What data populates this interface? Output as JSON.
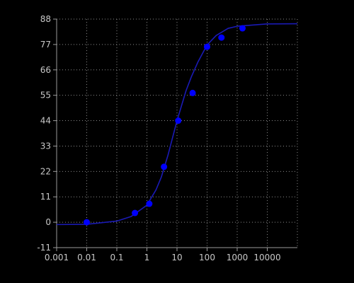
{
  "chart_data": {
    "type": "scatter",
    "title": "",
    "xlabel": "",
    "ylabel": "",
    "x_scale": "log",
    "xlim": [
      0.001,
      100000
    ],
    "ylim": [
      -11,
      88
    ],
    "grid": true,
    "x_ticks": [
      0.001,
      0.01,
      0.1,
      1,
      10,
      100,
      1000,
      10000
    ],
    "x_tick_labels": [
      "0.001",
      "0.01",
      "0.1",
      "1",
      "10",
      "100",
      "1000",
      "10000"
    ],
    "y_ticks": [
      -11,
      0,
      11,
      22,
      33,
      44,
      55,
      66,
      77,
      88
    ],
    "y_tick_labels": [
      "-11",
      "0",
      "11",
      "22",
      "33",
      "44",
      "55",
      "66",
      "77",
      "88"
    ],
    "series": [
      {
        "kind": "points",
        "color": "#0000ff",
        "x": [
          0.01,
          0.4,
          1.2,
          3.7,
          11,
          33,
          100,
          300,
          1500
        ],
        "y": [
          0,
          4,
          8,
          24,
          44,
          56,
          76,
          80,
          84
        ]
      },
      {
        "kind": "fitted-curve",
        "color": "#1a1ab4",
        "x": [
          0.001,
          0.01,
          0.1,
          0.3,
          1,
          2,
          3,
          5,
          10,
          20,
          30,
          50,
          100,
          200,
          500,
          1000,
          10000,
          100000
        ],
        "y": [
          -1,
          -0.9,
          0.5,
          2.5,
          7.4,
          14,
          19.5,
          29,
          44,
          57,
          63,
          69.5,
          76.8,
          80.9,
          84,
          84.9,
          85.9,
          86
        ]
      }
    ],
    "colors": {
      "background": "#000000",
      "axis": "#9a9a9a",
      "grid": "#8a8a8a",
      "tick_text": "#c8c8c8"
    }
  }
}
